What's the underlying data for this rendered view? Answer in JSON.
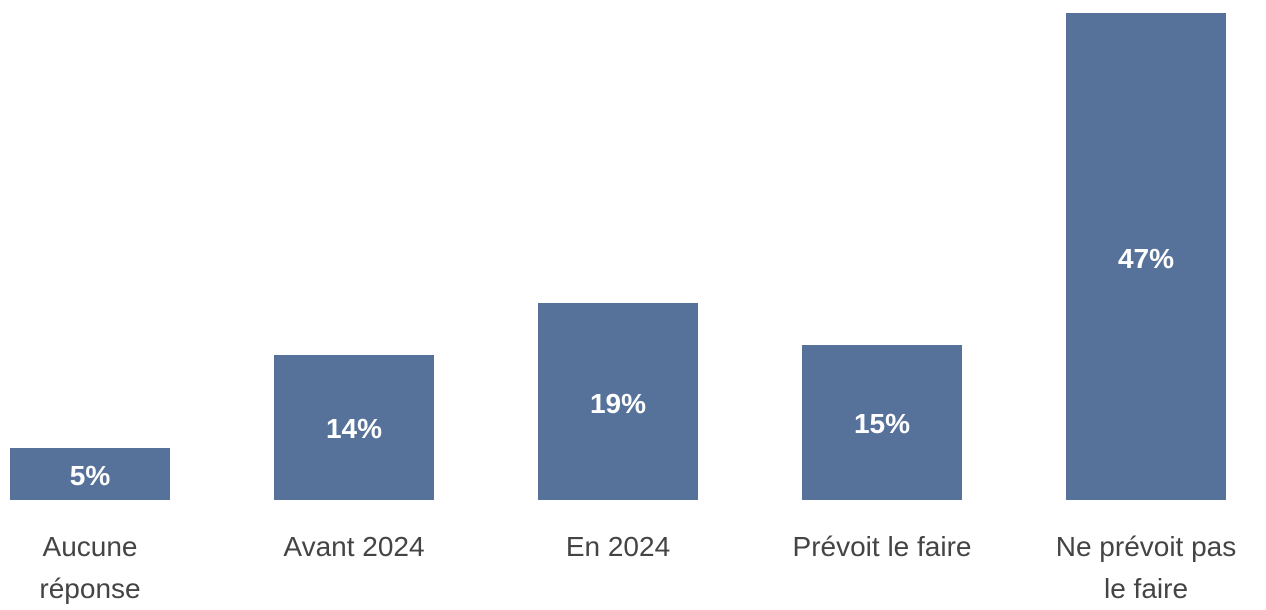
{
  "chart_data": {
    "type": "bar",
    "categories": [
      "Aucune\nréponse",
      "Avant 2024",
      "En 2024",
      "Prévoit le faire",
      "Ne prévoit pas\nle faire"
    ],
    "values": [
      5,
      14,
      19,
      15,
      47
    ],
    "value_labels": [
      "5%",
      "14%",
      "19%",
      "15%",
      "47%"
    ],
    "color": "#56729a"
  }
}
